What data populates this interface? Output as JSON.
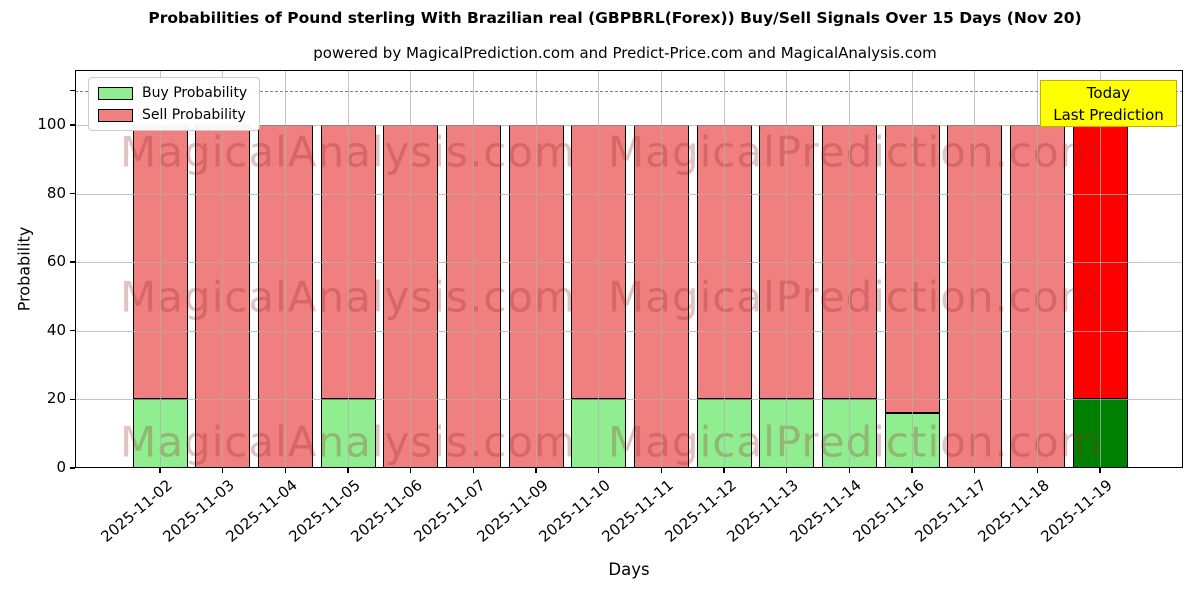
{
  "figure": {
    "title": "Probabilities of Pound sterling With Brazilian real (GBPBRL(Forex)) Buy/Sell Signals Over 15 Days (Nov 20)",
    "subtitle": "powered by MagicalPrediction.com and Predict-Price.com and MagicalAnalysis.com"
  },
  "chart_data": {
    "type": "bar",
    "stacked": true,
    "title": "Probabilities of Pound sterling With Brazilian real (GBPBRL(Forex)) Buy/Sell Signals Over 15 Days (Nov 20)",
    "subtitle": "powered by MagicalPrediction.com and Predict-Price.com and MagicalAnalysis.com",
    "xlabel": "Days",
    "ylabel": "Probability",
    "ylim": [
      0,
      116
    ],
    "yticks": [
      0,
      20,
      40,
      60,
      80,
      100
    ],
    "grid": true,
    "legend_position": "upper left",
    "dashed_threshold_y": 110,
    "categories": [
      "2025-11-02",
      "2025-11-03",
      "2025-11-04",
      "2025-11-05",
      "2025-11-06",
      "2025-11-07",
      "2025-11-09",
      "2025-11-10",
      "2025-11-11",
      "2025-11-12",
      "2025-11-13",
      "2025-11-14",
      "2025-11-16",
      "2025-11-17",
      "2025-11-18",
      "2025-11-19"
    ],
    "series": [
      {
        "name": "Buy Probability",
        "color": "#90ee90",
        "values": [
          20,
          0,
          0,
          20,
          0,
          0,
          0,
          20,
          0,
          20,
          20,
          20,
          16,
          0,
          0,
          20
        ]
      },
      {
        "name": "Sell Probability",
        "color": "#f08080",
        "values": [
          80,
          100,
          100,
          80,
          100,
          100,
          100,
          80,
          100,
          80,
          80,
          80,
          84,
          100,
          100,
          80
        ]
      }
    ],
    "today_bar": {
      "category": "2025-11-19",
      "index": 15,
      "buy_color": "#008000",
      "sell_color": "#ff0000"
    },
    "annotation": {
      "line1": "Today",
      "line2": "Last Prediction",
      "bg_color": "#ffff00",
      "border_color": "#b8b400"
    },
    "watermarks": [
      "MagicalAnalysis.com",
      "MagicalPrediction.com"
    ],
    "colors": {
      "bar_edge": "#000000",
      "grid": "#b0b0b0",
      "dashed_line": "#808080",
      "watermark": "rgba(150,40,40,0.28)"
    }
  }
}
